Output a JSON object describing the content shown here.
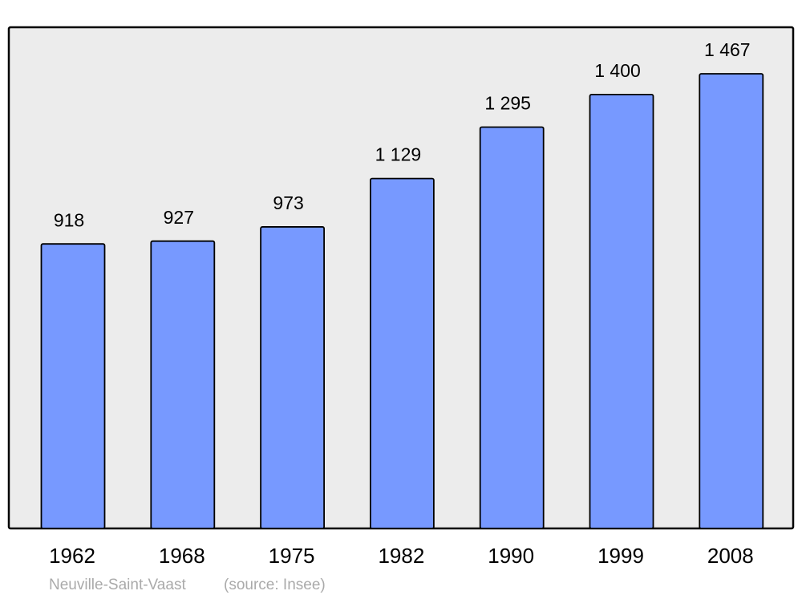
{
  "chart_data": {
    "type": "bar",
    "caption": "Neuville-Saint-Vaast",
    "source": "(source: Insee)",
    "categories": [
      "1962",
      "1968",
      "1975",
      "1982",
      "1990",
      "1999",
      "2008"
    ],
    "values": [
      918,
      927,
      973,
      1129,
      1295,
      1400,
      1467
    ],
    "value_labels": [
      "918",
      "927",
      "973",
      "1 129",
      "1 295",
      "1 400",
      "1 467"
    ],
    "color": "#7799ff"
  }
}
